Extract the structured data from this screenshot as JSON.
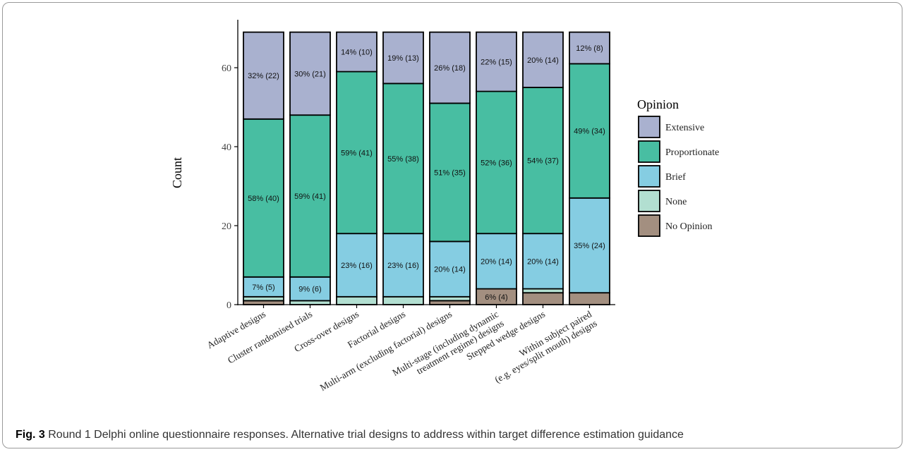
{
  "caption": {
    "label": "Fig. 3",
    "text": "Round 1 Delphi online questionnaire responses. Alternative trial designs to address within target difference estimation guidance"
  },
  "chart_data": {
    "type": "bar",
    "stacked": true,
    "title": "",
    "xlabel": "",
    "ylabel": "Count",
    "ylim": [
      0,
      69
    ],
    "yticks": [
      0,
      20,
      40,
      60
    ],
    "grid": false,
    "legend_title": "Opinion",
    "legend_position": "right",
    "categories": [
      "Adaptive designs",
      "Cluster randomised trials",
      "Cross-over designs",
      "Factorial designs",
      "Multi-arm (excluding factorial) designs",
      "Multi-stage (including dynamic treatment regime) designs",
      "Stepped wedge designs",
      "Within subject paired (e.g. eyes/split mouth) designs"
    ],
    "category_lines": [
      [
        "Adaptive designs"
      ],
      [
        "Cluster randomised trials"
      ],
      [
        "Cross-over designs"
      ],
      [
        "Factorial designs"
      ],
      [
        "Multi-arm (excluding factorial) designs"
      ],
      [
        "Multi-stage (including dynamic",
        "treatment regime) designs"
      ],
      [
        "Stepped wedge designs"
      ],
      [
        "Within subject paired",
        "(e.g. eyes/split mouth) designs"
      ]
    ],
    "series": [
      {
        "name": "No Opinion",
        "color": "#a38f80",
        "values": [
          1,
          0,
          0,
          0,
          1,
          4,
          3,
          3
        ],
        "labels": [
          "",
          "",
          "",
          "",
          "",
          "6% (4)",
          "",
          ""
        ]
      },
      {
        "name": "None",
        "color": "#b2dfd1",
        "values": [
          1,
          1,
          2,
          2,
          1,
          0,
          1,
          0
        ],
        "labels": [
          "",
          "",
          "",
          "",
          "",
          "",
          "",
          ""
        ]
      },
      {
        "name": "Brief",
        "color": "#85cde2",
        "values": [
          5,
          6,
          16,
          16,
          14,
          14,
          14,
          24
        ],
        "labels": [
          "7% (5)",
          "9% (6)",
          "23% (16)",
          "23% (16)",
          "20% (14)",
          "20% (14)",
          "20% (14)",
          "35% (24)"
        ]
      },
      {
        "name": "Proportionate",
        "color": "#48bea2",
        "values": [
          40,
          41,
          41,
          38,
          35,
          36,
          37,
          34
        ],
        "labels": [
          "58% (40)",
          "59% (41)",
          "59% (41)",
          "55% (38)",
          "51% (35)",
          "52% (36)",
          "54% (37)",
          "49% (34)"
        ]
      },
      {
        "name": "Extensive",
        "color": "#a9b1cf",
        "values": [
          22,
          21,
          10,
          13,
          18,
          15,
          14,
          8
        ],
        "labels": [
          "32% (22)",
          "30% (21)",
          "14% (10)",
          "19% (13)",
          "26% (18)",
          "22% (15)",
          "20% (14)",
          "12% (8)"
        ]
      }
    ],
    "legend_order": [
      "Extensive",
      "Proportionate",
      "Brief",
      "None",
      "No Opinion"
    ]
  }
}
